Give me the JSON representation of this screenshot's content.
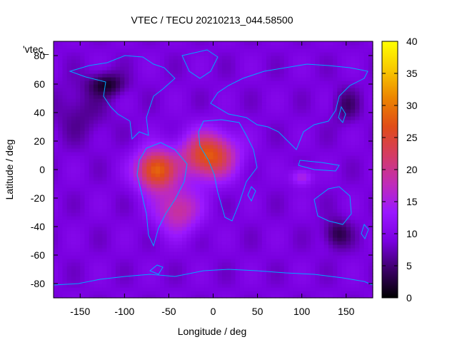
{
  "chart_data": {
    "type": "heatmap",
    "title": "VTEC / TECU 20210213_044.58500",
    "key_label": "'vtec_",
    "xlabel": "Longitude / deg",
    "ylabel": "Latitude / deg",
    "xlim": [
      -180,
      180
    ],
    "ylim": [
      -90,
      90
    ],
    "x_ticks": [
      -150,
      -100,
      -50,
      0,
      50,
      100,
      150
    ],
    "y_ticks": [
      -80,
      -60,
      -40,
      -20,
      0,
      20,
      40,
      60,
      80
    ],
    "colorbar": {
      "range": [
        0,
        40
      ],
      "ticks": [
        0,
        5,
        10,
        15,
        20,
        25,
        30,
        35,
        40
      ],
      "palette": [
        "#000000",
        "#3c0068",
        "#7a00e0",
        "#9a18ff",
        "#c02cb8",
        "#d43c64",
        "#e04c18",
        "#ec8400",
        "#f8c800",
        "#ffff00"
      ]
    },
    "grid": false,
    "cell_size_deg": [
      5,
      2.5
    ],
    "field_model": {
      "background_tecu": 9,
      "peaks": [
        {
          "lon": -65,
          "lat": 0,
          "amp": 20,
          "sig_lon": 22,
          "sig_lat": 14
        },
        {
          "lon": -5,
          "lat": 10,
          "amp": 19,
          "sig_lon": 30,
          "sig_lat": 16
        },
        {
          "lon": -40,
          "lat": -28,
          "amp": 11,
          "sig_lon": 25,
          "sig_lat": 16
        },
        {
          "lon": 100,
          "lat": -5,
          "amp": 7,
          "sig_lon": 12,
          "sig_lat": 6
        },
        {
          "lon": -150,
          "lat": 40,
          "amp": -3,
          "sig_lon": 30,
          "sig_lat": 20
        },
        {
          "lon": -120,
          "lat": 60,
          "amp": -7,
          "sig_lon": 20,
          "sig_lat": 8
        },
        {
          "lon": 140,
          "lat": -45,
          "amp": -6,
          "sig_lon": 15,
          "sig_lat": 10
        },
        {
          "lon": 150,
          "lat": 45,
          "amp": -4,
          "sig_lon": 15,
          "sig_lat": 12
        }
      ]
    }
  }
}
